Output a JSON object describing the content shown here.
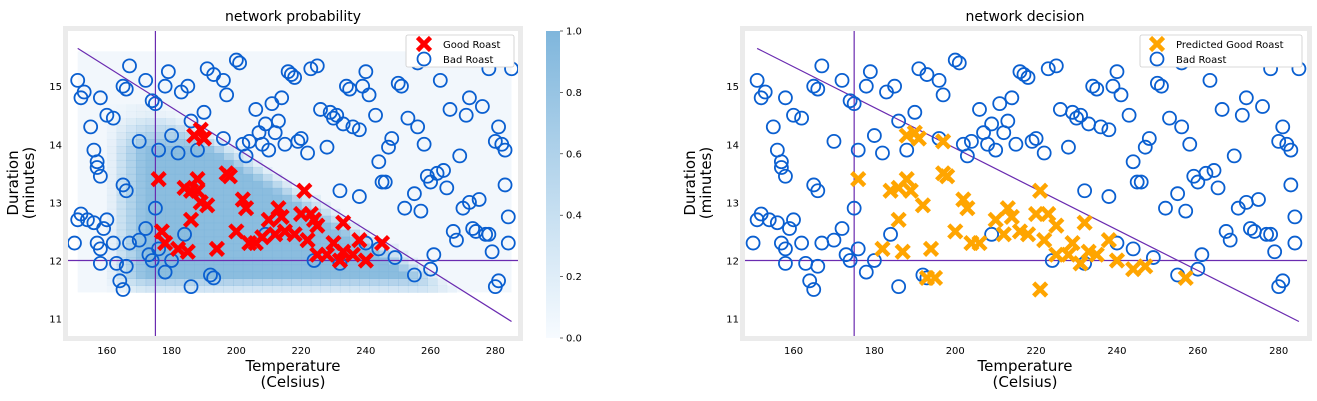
{
  "colors": {
    "good": "#ff0000",
    "predicted_good": "#ffa500",
    "bad": "#0a5fd0",
    "boundary": "#6a2bb0",
    "heat": "#7fb6dc",
    "frame": "#ebebeb"
  },
  "chart_data": [
    {
      "type": "scatter",
      "title": "network probability",
      "xlabel": "Temperature\n(Celsius)",
      "ylabel": "Duration\n(minutes)",
      "xlim": [
        148,
        287
      ],
      "ylim": [
        10.7,
        15.95
      ],
      "xticks": [
        160,
        180,
        200,
        220,
        240,
        260,
        280
      ],
      "yticks": [
        11,
        12,
        13,
        14,
        15
      ],
      "grid": false,
      "legend_position": "top-right",
      "heatmap": true,
      "colorbar": {
        "range": [
          0,
          1
        ],
        "ticks": [
          "0.0",
          "0.2",
          "0.4",
          "0.6",
          "0.8",
          "1.0"
        ]
      },
      "legend": [
        {
          "label": "Good Roast",
          "marker": "x",
          "color": "good"
        },
        {
          "label": "Bad Roast",
          "marker": "o",
          "color": "bad"
        }
      ],
      "good_series": "good"
    },
    {
      "type": "scatter",
      "title": "network decision",
      "xlabel": "Temperature\n(Celsius)",
      "ylabel": "Duration\n(minutes)",
      "xlim": [
        148,
        287
      ],
      "ylim": [
        10.7,
        15.95
      ],
      "xticks": [
        160,
        180,
        200,
        220,
        240,
        260,
        280
      ],
      "yticks": [
        11,
        12,
        13,
        14,
        15
      ],
      "grid": false,
      "legend_position": "top-right",
      "heatmap": false,
      "legend": [
        {
          "label": "Predicted Good Roast",
          "marker": "x",
          "color": "predicted_good"
        },
        {
          "label": "Bad Roast",
          "marker": "o",
          "color": "bad"
        }
      ],
      "good_series": "predicted_good"
    }
  ],
  "boundaries": {
    "diagonal": [
      [
        151,
        15.65
      ],
      [
        285,
        10.95
      ]
    ],
    "vertical_x": 175,
    "horizontal_y": 12.0
  },
  "points": {
    "good": [
      [
        176,
        13.4
      ],
      [
        177,
        12.5
      ],
      [
        178,
        12.3
      ],
      [
        182,
        12.2
      ],
      [
        185,
        12.15
      ],
      [
        184,
        13.25
      ],
      [
        186,
        13.2
      ],
      [
        186,
        12.7
      ],
      [
        188,
        13.2
      ],
      [
        189,
        13.0
      ],
      [
        188,
        13.4
      ],
      [
        187,
        14.15
      ],
      [
        189,
        14.25
      ],
      [
        190,
        14.1
      ],
      [
        191,
        12.95
      ],
      [
        194,
        12.2
      ],
      [
        197,
        13.5
      ],
      [
        198,
        13.45
      ],
      [
        200,
        12.5
      ],
      [
        202,
        13.05
      ],
      [
        203,
        12.9
      ],
      [
        204,
        12.3
      ],
      [
        206,
        12.3
      ],
      [
        208,
        12.4
      ],
      [
        210,
        12.7
      ],
      [
        212,
        12.45
      ],
      [
        213,
        12.9
      ],
      [
        214,
        12.75
      ],
      [
        215,
        12.5
      ],
      [
        218,
        12.45
      ],
      [
        220,
        12.8
      ],
      [
        221,
        13.2
      ],
      [
        222,
        12.35
      ],
      [
        223,
        12.8
      ],
      [
        224,
        12.7
      ],
      [
        225,
        12.6
      ],
      [
        225,
        12.1
      ],
      [
        228,
        12.1
      ],
      [
        230,
        12.3
      ],
      [
        232,
        12.0
      ],
      [
        233,
        12.65
      ],
      [
        233,
        12.15
      ],
      [
        236,
        12.1
      ],
      [
        238,
        12.35
      ],
      [
        240,
        12.0
      ],
      [
        245,
        12.3
      ]
    ],
    "predicted_good": [
      [
        176,
        13.4
      ],
      [
        182,
        12.2
      ],
      [
        184,
        13.2
      ],
      [
        186,
        12.7
      ],
      [
        186,
        13.25
      ],
      [
        187,
        12.15
      ],
      [
        188,
        13.4
      ],
      [
        188,
        14.15
      ],
      [
        189,
        13.2
      ],
      [
        190,
        14.2
      ],
      [
        191,
        14.1
      ],
      [
        192,
        12.95
      ],
      [
        194,
        12.2
      ],
      [
        193,
        11.7
      ],
      [
        195,
        11.7
      ],
      [
        197,
        13.5
      ],
      [
        198,
        13.45
      ],
      [
        197,
        14.05
      ],
      [
        200,
        12.5
      ],
      [
        202,
        13.05
      ],
      [
        203,
        12.9
      ],
      [
        204,
        12.3
      ],
      [
        206,
        12.3
      ],
      [
        210,
        12.7
      ],
      [
        212,
        12.45
      ],
      [
        213,
        12.9
      ],
      [
        214,
        12.75
      ],
      [
        216,
        12.5
      ],
      [
        218,
        12.45
      ],
      [
        220,
        12.8
      ],
      [
        221,
        13.2
      ],
      [
        222,
        12.35
      ],
      [
        223,
        12.8
      ],
      [
        225,
        12.6
      ],
      [
        225,
        12.1
      ],
      [
        228,
        12.1
      ],
      [
        229,
        12.3
      ],
      [
        231,
        11.95
      ],
      [
        232,
        12.65
      ],
      [
        233,
        12.15
      ],
      [
        235,
        12.1
      ],
      [
        238,
        12.35
      ],
      [
        240,
        12.0
      ],
      [
        244,
        11.85
      ],
      [
        247,
        11.9
      ],
      [
        221,
        11.5
      ],
      [
        257,
        11.7
      ]
    ],
    "bad": [
      [
        150,
        12.3
      ],
      [
        151,
        12.7
      ],
      [
        152,
        12.8
      ],
      [
        154,
        12.7
      ],
      [
        156,
        12.65
      ],
      [
        157,
        12.3
      ],
      [
        158,
        12.2
      ],
      [
        159,
        12.55
      ],
      [
        160,
        12.7
      ],
      [
        162,
        12.3
      ],
      [
        163,
        11.95
      ],
      [
        164,
        11.65
      ],
      [
        165,
        11.5
      ],
      [
        166,
        11.9
      ],
      [
        167,
        12.3
      ],
      [
        170,
        12.35
      ],
      [
        172,
        12.55
      ],
      [
        173,
        12.1
      ],
      [
        174,
        12.0
      ],
      [
        175,
        12.9
      ],
      [
        176,
        12.2
      ],
      [
        178,
        11.8
      ],
      [
        180,
        12.0
      ],
      [
        184,
        12.45
      ],
      [
        186,
        11.55
      ],
      [
        192,
        11.75
      ],
      [
        193,
        11.7
      ],
      [
        151,
        15.1
      ],
      [
        152,
        14.8
      ],
      [
        153,
        14.9
      ],
      [
        155,
        14.3
      ],
      [
        156,
        13.9
      ],
      [
        157,
        13.7
      ],
      [
        157,
        13.6
      ],
      [
        158,
        13.45
      ],
      [
        158,
        14.8
      ],
      [
        160,
        14.5
      ],
      [
        162,
        14.45
      ],
      [
        165,
        13.3
      ],
      [
        165,
        15.0
      ],
      [
        166,
        13.2
      ],
      [
        167,
        15.35
      ],
      [
        170,
        14.05
      ],
      [
        172,
        15.1
      ],
      [
        174,
        14.75
      ],
      [
        175,
        14.7
      ],
      [
        176,
        13.9
      ],
      [
        178,
        15.0
      ],
      [
        179,
        15.25
      ],
      [
        180,
        14.15
      ],
      [
        182,
        13.85
      ],
      [
        183,
        14.9
      ],
      [
        185,
        15.0
      ],
      [
        186,
        14.4
      ],
      [
        188,
        13.9
      ],
      [
        190,
        14.55
      ],
      [
        191,
        15.3
      ],
      [
        193,
        15.2
      ],
      [
        196,
        15.1
      ],
      [
        197,
        14.85
      ],
      [
        200,
        15.45
      ],
      [
        201,
        15.4
      ],
      [
        202,
        14.0
      ],
      [
        204,
        14.05
      ],
      [
        206,
        14.6
      ],
      [
        207,
        14.2
      ],
      [
        208,
        14.0
      ],
      [
        209,
        14.35
      ],
      [
        210,
        13.9
      ],
      [
        211,
        14.7
      ],
      [
        212,
        14.2
      ],
      [
        213,
        14.4
      ],
      [
        214,
        14.8
      ],
      [
        215,
        14.0
      ],
      [
        216,
        15.25
      ],
      [
        217,
        15.2
      ],
      [
        218,
        15.15
      ],
      [
        219,
        14.05
      ],
      [
        220,
        14.1
      ],
      [
        222,
        13.85
      ],
      [
        223,
        15.3
      ],
      [
        225,
        15.35
      ],
      [
        226,
        14.6
      ],
      [
        228,
        13.95
      ],
      [
        229,
        14.55
      ],
      [
        231,
        14.5
      ],
      [
        232,
        13.2
      ],
      [
        233,
        14.35
      ],
      [
        234,
        15.0
      ],
      [
        235,
        14.95
      ],
      [
        236,
        14.3
      ],
      [
        238,
        14.25
      ],
      [
        238,
        13.1
      ],
      [
        239,
        15.0
      ],
      [
        240,
        15.25
      ],
      [
        241,
        14.85
      ],
      [
        243,
        14.5
      ],
      [
        244,
        13.7
      ],
      [
        245,
        13.35
      ],
      [
        246,
        13.35
      ],
      [
        247,
        13.95
      ],
      [
        248,
        14.1
      ],
      [
        250,
        15.05
      ],
      [
        251,
        15.0
      ],
      [
        252,
        12.9
      ],
      [
        253,
        14.45
      ],
      [
        255,
        13.15
      ],
      [
        256,
        14.3
      ],
      [
        257,
        12.85
      ],
      [
        258,
        14.0
      ],
      [
        259,
        13.45
      ],
      [
        260,
        13.35
      ],
      [
        261,
        12.1
      ],
      [
        262,
        13.5
      ],
      [
        263,
        15.1
      ],
      [
        264,
        13.55
      ],
      [
        265,
        13.25
      ],
      [
        266,
        14.6
      ],
      [
        267,
        12.5
      ],
      [
        268,
        12.35
      ],
      [
        269,
        13.8
      ],
      [
        270,
        12.9
      ],
      [
        271,
        14.5
      ],
      [
        272,
        14.8
      ],
      [
        273,
        12.55
      ],
      [
        274,
        12.5
      ],
      [
        275,
        13.05
      ],
      [
        276,
        14.65
      ],
      [
        277,
        12.45
      ],
      [
        278,
        12.45
      ],
      [
        279,
        12.15
      ],
      [
        280,
        11.55
      ],
      [
        280,
        14.05
      ],
      [
        281,
        14.3
      ],
      [
        281,
        11.65
      ],
      [
        282,
        14.0
      ],
      [
        283,
        13.3
      ],
      [
        284,
        12.75
      ],
      [
        284,
        12.3
      ],
      [
        278,
        15.3
      ],
      [
        256,
        15.4
      ],
      [
        230,
        14.45
      ],
      [
        244,
        12.2
      ],
      [
        249,
        12.05
      ],
      [
        255,
        11.75
      ],
      [
        260,
        11.85
      ],
      [
        224,
        12.0
      ],
      [
        232,
        11.95
      ],
      [
        240,
        12.3
      ],
      [
        158,
        11.95
      ],
      [
        166,
        14.95
      ],
      [
        196,
        14.1
      ],
      [
        203,
        13.8
      ],
      [
        209,
        12.45
      ],
      [
        272,
        13.0
      ],
      [
        283,
        13.9
      ],
      [
        285,
        15.3
      ]
    ]
  }
}
